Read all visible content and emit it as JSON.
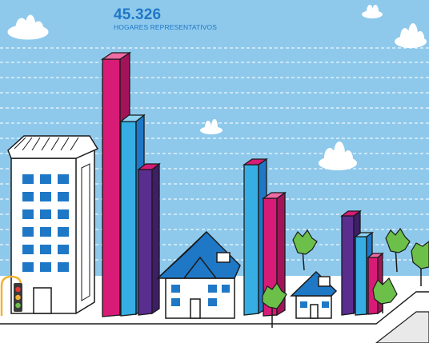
{
  "stat": {
    "value": "45.326",
    "label": "HOGARES REPRESENTATIVOS"
  },
  "colors": {
    "sky": "#8ec9ec",
    "title_blue": "#1f78c6",
    "magenta": "#d81b76",
    "cyan": "#36aee3",
    "purple": "#5a2e8f",
    "tree_green": "#6cc04a",
    "window_blue": "#1f78c6",
    "outline": "#1a1a1a"
  },
  "icons": [
    "cloud-icon",
    "tree-icon",
    "traffic-light-icon",
    "house-icon",
    "building-icon"
  ]
}
